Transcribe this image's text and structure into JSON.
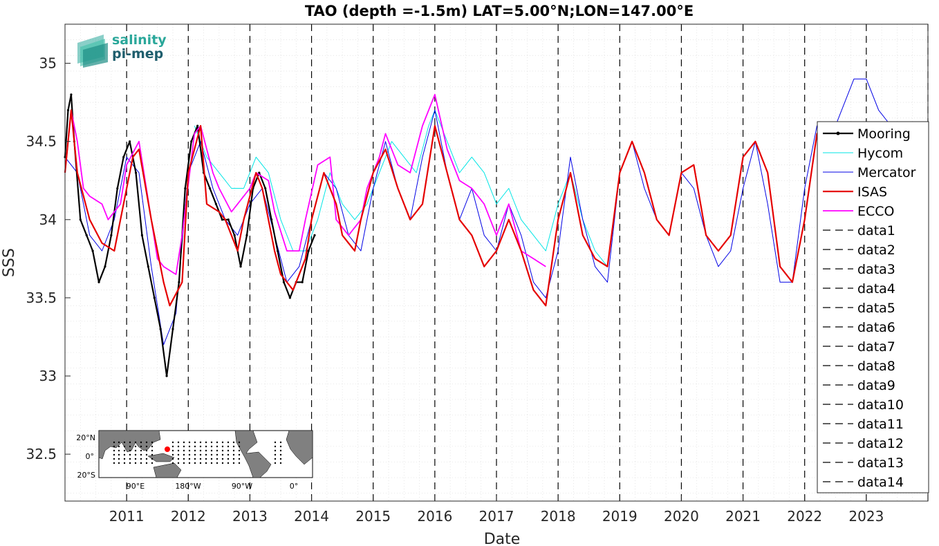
{
  "chart_data": {
    "type": "line",
    "title": "TAO (depth =-1.5m) LAT=5.00°N;LON=147.00°E",
    "xlabel": "Date",
    "ylabel": "SSS",
    "xlim": [
      2010.0,
      2024.0
    ],
    "ylim": [
      32.2,
      35.25
    ],
    "x_ticks": [
      2011,
      2012,
      2013,
      2014,
      2015,
      2016,
      2017,
      2018,
      2019,
      2020,
      2021,
      2022,
      2023
    ],
    "x_tick_labels": [
      "2011",
      "2012",
      "2013",
      "2014",
      "2015",
      "2016",
      "2017",
      "2018",
      "2019",
      "2020",
      "2021",
      "2022",
      "2023"
    ],
    "y_ticks": [
      32.5,
      33,
      33.5,
      34,
      34.5,
      35
    ],
    "y_tick_labels": [
      "32.5",
      "33",
      "33.5",
      "34",
      "34.5",
      "35"
    ],
    "grid": true,
    "legend_placement": "right",
    "series": [
      {
        "name": "Mooring",
        "color": "#000000",
        "x": [
          2010.0,
          2010.05,
          2010.1,
          2010.15,
          2010.25,
          2010.35,
          2010.45,
          2010.55,
          2010.65,
          2010.75,
          2010.85,
          2010.95,
          2011.05,
          2011.15,
          2011.25,
          2011.35,
          2011.45,
          2011.55,
          2011.65,
          2011.75,
          2011.85,
          2011.95,
          2012.05,
          2012.15,
          2012.25,
          2012.35,
          2012.45,
          2012.55,
          2012.65,
          2012.75,
          2012.85,
          2012.95,
          2013.05,
          2013.15,
          2013.25,
          2013.35,
          2013.45,
          2013.55,
          2013.65,
          2013.75,
          2013.85,
          2013.95,
          2014.05
        ],
        "y": [
          34.4,
          34.7,
          34.8,
          34.5,
          34.0,
          33.9,
          33.8,
          33.6,
          33.7,
          33.9,
          34.2,
          34.4,
          34.5,
          34.3,
          33.9,
          33.7,
          33.5,
          33.3,
          33.0,
          33.3,
          33.6,
          34.2,
          34.5,
          34.6,
          34.3,
          34.2,
          34.1,
          34.0,
          34.0,
          33.9,
          33.7,
          33.9,
          34.2,
          34.3,
          34.2,
          34.0,
          33.8,
          33.6,
          33.5,
          33.6,
          33.6,
          33.8,
          33.9
        ]
      },
      {
        "name": "Hycom",
        "color": "#00e5e5",
        "x": [
          2012.1,
          2012.3,
          2012.5,
          2012.7,
          2012.9,
          2013.1,
          2013.3,
          2013.5,
          2013.7,
          2013.9,
          2014.1,
          2014.3,
          2014.5,
          2014.7,
          2014.9,
          2015.1,
          2015.3,
          2015.5,
          2015.7,
          2015.9,
          2016.0,
          2016.2,
          2016.4,
          2016.6,
          2016.8,
          2017.0,
          2017.2,
          2017.4,
          2017.6,
          2017.8,
          2018.0,
          2018.2,
          2018.4,
          2018.6,
          2018.8
        ],
        "y": [
          34.6,
          34.4,
          34.3,
          34.2,
          34.2,
          34.4,
          34.3,
          34.0,
          33.8,
          33.8,
          34.0,
          34.3,
          34.1,
          34.0,
          34.1,
          34.3,
          34.5,
          34.4,
          34.3,
          34.6,
          34.7,
          34.5,
          34.3,
          34.4,
          34.3,
          34.1,
          34.2,
          34.0,
          33.9,
          33.8,
          34.1,
          34.3,
          34.0,
          33.8,
          33.7
        ]
      },
      {
        "name": "Mercator",
        "color": "#0000e5",
        "x": [
          2010.0,
          2010.2,
          2010.4,
          2010.6,
          2010.8,
          2011.0,
          2011.2,
          2011.4,
          2011.6,
          2011.8,
          2012.0,
          2012.2,
          2012.4,
          2012.6,
          2012.8,
          2013.0,
          2013.2,
          2013.4,
          2013.6,
          2013.8,
          2014.0,
          2014.2,
          2014.4,
          2014.6,
          2014.8,
          2015.0,
          2015.2,
          2015.4,
          2015.6,
          2015.8,
          2016.0,
          2016.2,
          2016.4,
          2016.6,
          2016.8,
          2017.0,
          2017.2,
          2017.4,
          2017.6,
          2017.8,
          2018.0,
          2018.2,
          2018.4,
          2018.6,
          2018.8,
          2019.0,
          2019.2,
          2019.4,
          2019.6,
          2019.8,
          2020.0,
          2020.2,
          2020.4,
          2020.6,
          2020.8,
          2021.0,
          2021.2,
          2021.4,
          2021.6,
          2021.8,
          2022.0,
          2022.2,
          2022.4,
          2022.6,
          2022.8,
          2023.0,
          2023.2,
          2023.4
        ],
        "y": [
          34.4,
          34.3,
          33.9,
          33.8,
          34.0,
          34.4,
          34.3,
          33.7,
          33.2,
          33.4,
          34.3,
          34.5,
          34.2,
          34.0,
          33.9,
          34.1,
          34.2,
          33.9,
          33.6,
          33.7,
          34.0,
          34.3,
          34.2,
          33.9,
          33.8,
          34.2,
          34.5,
          34.2,
          34.0,
          34.4,
          34.7,
          34.3,
          34.0,
          34.2,
          33.9,
          33.8,
          34.1,
          33.9,
          33.6,
          33.5,
          33.8,
          34.4,
          34.0,
          33.7,
          33.6,
          34.3,
          34.5,
          34.2,
          34.0,
          33.9,
          34.3,
          34.2,
          33.9,
          33.7,
          33.8,
          34.2,
          34.5,
          34.1,
          33.6,
          33.6,
          34.2,
          34.6,
          34.5,
          34.7,
          34.9,
          34.9,
          34.7,
          34.6
        ]
      },
      {
        "name": "ISAS",
        "color": "#e50000",
        "x": [
          2010.0,
          2010.1,
          2010.2,
          2010.4,
          2010.6,
          2010.8,
          2010.9,
          2011.1,
          2011.2,
          2011.4,
          2011.6,
          2011.7,
          2011.9,
          2012.0,
          2012.2,
          2012.3,
          2012.5,
          2012.6,
          2012.8,
          2012.9,
          2013.1,
          2013.2,
          2013.4,
          2013.5,
          2013.7,
          2013.9,
          2014.0,
          2014.2,
          2014.4,
          2014.5,
          2014.7,
          2014.8,
          2015.0,
          2015.2,
          2015.4,
          2015.6,
          2015.8,
          2016.0,
          2016.2,
          2016.4,
          2016.6,
          2016.8,
          2017.0,
          2017.2,
          2017.4,
          2017.6,
          2017.8,
          2018.0,
          2018.2,
          2018.4,
          2018.6,
          2018.8,
          2019.0,
          2019.2,
          2019.4,
          2019.6,
          2019.8,
          2020.0,
          2020.2,
          2020.4,
          2020.6,
          2020.8,
          2021.0,
          2021.2,
          2021.4,
          2021.6,
          2021.8,
          2022.0,
          2022.2,
          2022.4
        ],
        "y": [
          34.3,
          34.7,
          34.3,
          34.0,
          33.85,
          33.8,
          34.0,
          34.4,
          34.45,
          34.0,
          33.6,
          33.45,
          33.6,
          34.3,
          34.6,
          34.1,
          34.05,
          34.0,
          33.8,
          34.0,
          34.3,
          34.2,
          33.8,
          33.65,
          33.55,
          33.75,
          34.0,
          34.3,
          34.1,
          33.9,
          33.8,
          34.0,
          34.3,
          34.45,
          34.2,
          34.0,
          34.1,
          34.6,
          34.3,
          34.0,
          33.9,
          33.7,
          33.8,
          34.0,
          33.8,
          33.55,
          33.45,
          34.0,
          34.3,
          33.9,
          33.75,
          33.7,
          34.3,
          34.5,
          34.3,
          34.0,
          33.9,
          34.3,
          34.35,
          33.9,
          33.8,
          33.9,
          34.4,
          34.5,
          34.3,
          33.7,
          33.6,
          34.0,
          34.55,
          34.3
        ]
      },
      {
        "name": "ECCO",
        "color": "#ff00ff",
        "x": [
          2010.0,
          2010.1,
          2010.2,
          2010.3,
          2010.4,
          2010.6,
          2010.7,
          2010.9,
          2011.0,
          2011.2,
          2011.3,
          2011.5,
          2011.6,
          2011.8,
          2011.9,
          2012.1,
          2012.2,
          2012.4,
          2012.5,
          2012.7,
          2012.8,
          2013.0,
          2013.1,
          2013.3,
          2013.4,
          2013.6,
          2013.8,
          2013.9,
          2014.1,
          2014.3,
          2014.4,
          2014.6,
          2014.8,
          2014.9,
          2015.1,
          2015.2,
          2015.4,
          2015.6,
          2015.8,
          2016.0,
          2016.2,
          2016.4,
          2016.6,
          2016.8,
          2017.0,
          2017.2,
          2017.4,
          2017.6,
          2017.8
        ],
        "y": [
          34.3,
          34.7,
          34.5,
          34.2,
          34.15,
          34.1,
          34.0,
          34.1,
          34.35,
          34.5,
          34.25,
          33.75,
          33.7,
          33.65,
          33.9,
          34.55,
          34.6,
          34.3,
          34.2,
          34.05,
          34.1,
          34.2,
          34.3,
          34.25,
          34.05,
          33.8,
          33.8,
          34.0,
          34.35,
          34.4,
          34.0,
          33.9,
          34.0,
          34.2,
          34.4,
          34.55,
          34.35,
          34.3,
          34.6,
          34.8,
          34.45,
          34.25,
          34.2,
          34.1,
          33.9,
          34.1,
          33.8,
          33.75,
          33.7
        ]
      }
    ],
    "reference_lines": {
      "labels": [
        "data1",
        "data2",
        "data3",
        "data4",
        "data5",
        "data6",
        "data7",
        "data8",
        "data9",
        "data10",
        "data11",
        "data12",
        "data13",
        "data14"
      ],
      "x": [
        2011,
        2012,
        2013,
        2014,
        2015,
        2016,
        2017,
        2018,
        2019,
        2020,
        2021,
        2022,
        2023,
        2024
      ],
      "style": "dashed",
      "color": "#000000"
    }
  },
  "logo": {
    "line1": "salinity",
    "line2": "pi-mep",
    "color1": "#2aa79a",
    "color2": "#1f5e6d"
  },
  "inset_map": {
    "lat_labels": [
      "20°N",
      "0°",
      "20°S"
    ],
    "lon_labels": [
      "90°E",
      "180°W",
      "90°W",
      "0°"
    ],
    "marker_color": "#ff0000"
  }
}
